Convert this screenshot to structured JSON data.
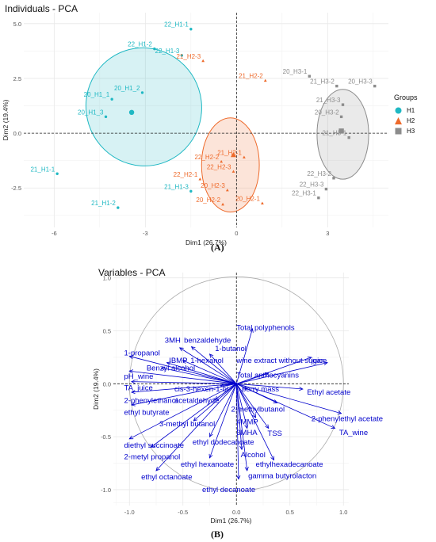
{
  "chart_data": [
    {
      "type": "scatter",
      "title": "Individuals - PCA",
      "xlabel": "Dim1 (26.7%)",
      "ylabel": "Dim2 (19.4%)",
      "xlim": [
        -7,
        5
      ],
      "ylim": [
        -4.3,
        5.5
      ],
      "x_ticks": [
        -6,
        -3,
        0,
        3
      ],
      "y_ticks": [
        -2.5,
        0.0,
        2.5,
        5.0
      ],
      "y_tick_labels": [
        "-2.5",
        "0.0",
        "2.5",
        "5.0"
      ],
      "grid": true,
      "legend_position": "right",
      "legend_title": "Groups",
      "groups": [
        {
          "name": "H1",
          "color": "#1fb8c3",
          "marker": "circle",
          "centroid": [
            -3.45,
            0.95
          ],
          "points": [
            {
              "label": "22_H1-1",
              "x": -1.5,
              "y": 4.75
            },
            {
              "label": "22_H1-2",
              "x": -2.7,
              "y": 3.85
            },
            {
              "label": "22_H1-3",
              "x": -1.8,
              "y": 3.55
            },
            {
              "label": "20_H1_2",
              "x": -3.1,
              "y": 1.85
            },
            {
              "label": "20_H1_1",
              "x": -4.1,
              "y": 1.55
            },
            {
              "label": "20_H1_3",
              "x": -4.3,
              "y": 0.75
            },
            {
              "label": "21_H1-1",
              "x": -5.9,
              "y": -1.85
            },
            {
              "label": "21_H1-2",
              "x": -3.9,
              "y": -3.4
            },
            {
              "label": "21_H1-3",
              "x": -1.5,
              "y": -2.65
            }
          ]
        },
        {
          "name": "H2",
          "color": "#ee6a2b",
          "marker": "triangle",
          "centroid": [
            -0.1,
            -1.0
          ],
          "points": [
            {
              "label": "21_H2-3",
              "x": -1.1,
              "y": 3.3
            },
            {
              "label": "21_H2-2",
              "x": 0.95,
              "y": 2.4
            },
            {
              "label": "21_H2-1",
              "x": 0.25,
              "y": -1.1
            },
            {
              "label": "22_H2-2",
              "x": -0.5,
              "y": -1.3
            },
            {
              "label": "22_H2-3",
              "x": -0.1,
              "y": -1.75
            },
            {
              "label": "22_H2-1",
              "x": -1.2,
              "y": -2.1
            },
            {
              "label": "20_H2-3",
              "x": -0.3,
              "y": -2.6
            },
            {
              "label": "20_H2-2",
              "x": -0.45,
              "y": -3.25
            },
            {
              "label": "20_H2-1",
              "x": 0.85,
              "y": -3.2
            }
          ]
        },
        {
          "name": "H3",
          "color": "#8c8c8c",
          "marker": "square",
          "centroid": [
            3.45,
            0.1
          ],
          "points": [
            {
              "label": "20_H3-1",
              "x": 2.4,
              "y": 2.6
            },
            {
              "label": "21_H3-2",
              "x": 3.3,
              "y": 2.15
            },
            {
              "label": "20_H3-3",
              "x": 4.55,
              "y": 2.15
            },
            {
              "label": "21_H3-3",
              "x": 3.5,
              "y": 1.3
            },
            {
              "label": "20_H3-2",
              "x": 3.45,
              "y": 0.75
            },
            {
              "label": "21_H3-1",
              "x": 3.7,
              "y": -0.2
            },
            {
              "label": "22_H3-2",
              "x": 3.2,
              "y": -2.05
            },
            {
              "label": "22_H3-3",
              "x": 2.95,
              "y": -2.55
            },
            {
              "label": "22_H3-1",
              "x": 2.7,
              "y": -2.95
            }
          ]
        }
      ],
      "ellipses": [
        {
          "group": "H1",
          "cx": -3.05,
          "cy": 1.2,
          "rx": 1.9,
          "ry": 2.7,
          "angle": -18
        },
        {
          "group": "H2",
          "cx": -0.2,
          "cy": -1.45,
          "rx": 0.95,
          "ry": 2.15,
          "angle": 0
        },
        {
          "group": "H3",
          "cx": 3.5,
          "cy": -0.05,
          "rx": 0.85,
          "ry": 2.05,
          "angle": 0
        }
      ]
    },
    {
      "type": "scatter",
      "subtype": "correlation-circle",
      "title": "Variables - PCA",
      "xlabel": "Dim1 (26.7%)",
      "ylabel": "Dim2 (19.4%)",
      "xlim": [
        -1.15,
        1.05
      ],
      "ylim": [
        -1.15,
        1.05
      ],
      "x_ticks": [
        -1.0,
        -0.5,
        0.0,
        0.5,
        1.0
      ],
      "x_tick_labels": [
        "-1.0",
        "-0.5",
        "0.0",
        "0.5",
        "1.0"
      ],
      "y_ticks": [
        -1.0,
        -0.5,
        0.0,
        0.5,
        1.0
      ],
      "y_tick_labels": [
        "-1.0",
        "-0.5",
        "0.0",
        "0.5",
        "1.0"
      ],
      "grid": true,
      "arrow_color": "#0000cc",
      "variables": [
        {
          "label": "Total polyphenols",
          "x": 0.15,
          "y": 0.52,
          "lx": 0.0,
          "ly": 0.53
        },
        {
          "label": "3MH",
          "x": -0.53,
          "y": 0.34,
          "lx": -0.67,
          "ly": 0.41
        },
        {
          "label": "benzaldehyde",
          "x": -0.42,
          "y": 0.35,
          "lx": -0.49,
          "ly": 0.41
        },
        {
          "label": "1-butanol",
          "x": -0.25,
          "y": 0.28,
          "lx": -0.2,
          "ly": 0.33
        },
        {
          "label": "1-propanol",
          "x": -1.0,
          "y": 0.26,
          "lx": -1.05,
          "ly": 0.29
        },
        {
          "label": "IBMP",
          "x": -0.65,
          "y": 0.2,
          "lx": -0.63,
          "ly": 0.22
        },
        {
          "label": "1-hexanol",
          "x": -0.5,
          "y": 0.22,
          "lx": -0.43,
          "ly": 0.22
        },
        {
          "label": "wine extract without sugar",
          "x": 0.7,
          "y": 0.25,
          "lx": 0.0,
          "ly": 0.22
        },
        {
          "label": "juice",
          "x": 0.85,
          "y": 0.2,
          "lx": 0.7,
          "ly": 0.22
        },
        {
          "label": "Benzyl alcohol",
          "x": -0.7,
          "y": 0.15,
          "lx": -0.84,
          "ly": 0.15
        },
        {
          "label": "pH_wine",
          "x": -1.0,
          "y": 0.12,
          "lx": -1.05,
          "ly": 0.07
        },
        {
          "label": "Total anthocyanins",
          "x": 0.3,
          "y": 0.1,
          "lx": 0.0,
          "ly": 0.08
        },
        {
          "label": "TA_juice",
          "x": -0.98,
          "y": 0.02,
          "lx": -1.05,
          "ly": -0.04
        },
        {
          "label": "cis-3-hexen-1-ol",
          "x": -0.15,
          "y": -0.02,
          "lx": -0.58,
          "ly": -0.05
        },
        {
          "label": "berry mass",
          "x": 0.1,
          "y": -0.05,
          "lx": 0.05,
          "ly": -0.05
        },
        {
          "label": "Ethyl acetate",
          "x": 0.62,
          "y": -0.05,
          "lx": 0.66,
          "ly": -0.08
        },
        {
          "label": "2-phenylethanol",
          "x": -0.98,
          "y": -0.08,
          "lx": -1.05,
          "ly": -0.16
        },
        {
          "label": "acetaldehyde",
          "x": -0.2,
          "y": -0.15,
          "lx": -0.58,
          "ly": -0.16
        },
        {
          "label": "2-methylbutanol",
          "x": 0.38,
          "y": -0.18,
          "lx": -0.05,
          "ly": -0.24
        },
        {
          "label": "ethyl butyrate",
          "x": -0.98,
          "y": -0.2,
          "lx": -1.05,
          "ly": -0.27
        },
        {
          "label": "2-phenylethyl acetate",
          "x": 0.98,
          "y": -0.28,
          "lx": 0.7,
          "ly": -0.33
        },
        {
          "label": "3-methyl butanol",
          "x": -0.4,
          "y": -0.35,
          "lx": -0.72,
          "ly": -0.38
        },
        {
          "label": "4MMP",
          "x": 0.18,
          "y": -0.32,
          "lx": 0.0,
          "ly": -0.36
        },
        {
          "label": "3MHA",
          "x": 0.1,
          "y": -0.42,
          "lx": 0.0,
          "ly": -0.46
        },
        {
          "label": "TSS",
          "x": 0.3,
          "y": -0.42,
          "lx": 0.29,
          "ly": -0.47
        },
        {
          "label": "TA_wine",
          "x": 0.92,
          "y": -0.42,
          "lx": 0.96,
          "ly": -0.46
        },
        {
          "label": "ethyl dodecanoate",
          "x": -0.25,
          "y": -0.5,
          "lx": -0.41,
          "ly": -0.55
        },
        {
          "label": "diethyl succinoate",
          "x": -1.0,
          "y": -0.52,
          "lx": -1.05,
          "ly": -0.58
        },
        {
          "label": "2-metyl propanol",
          "x": -0.8,
          "y": -0.6,
          "lx": -1.05,
          "ly": -0.69
        },
        {
          "label": "Alcohol",
          "x": 0.05,
          "y": -0.62,
          "lx": 0.04,
          "ly": -0.67
        },
        {
          "label": "ethyl hexanoate",
          "x": -0.25,
          "y": -0.7,
          "lx": -0.52,
          "ly": -0.76
        },
        {
          "label": "ethylhexadecanoate",
          "x": 0.35,
          "y": -0.72,
          "lx": 0.18,
          "ly": -0.76
        },
        {
          "label": "gamma butyrolacton",
          "x": 0.1,
          "y": -0.82,
          "lx": 0.11,
          "ly": -0.87
        },
        {
          "label": "ethyl octanoate",
          "x": -0.75,
          "y": -0.82,
          "lx": -0.89,
          "ly": -0.88
        },
        {
          "label": "ethyl decanoate",
          "x": 0.02,
          "y": -0.9,
          "lx": -0.32,
          "ly": -1.0
        }
      ]
    }
  ],
  "captions": [
    "(A)",
    "(B)"
  ]
}
